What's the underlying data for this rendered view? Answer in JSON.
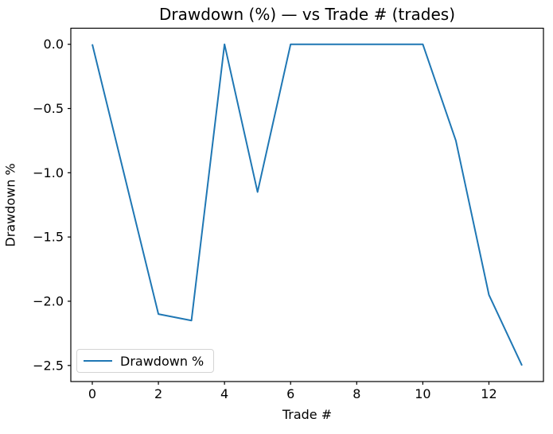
{
  "figure": {
    "background": "#ffffff",
    "text_color": "#000000",
    "spine_color": "#000000"
  },
  "chart_data": {
    "type": "line",
    "title": "Drawdown (%) — vs Trade # (trades)",
    "xlabel": "Trade #",
    "ylabel": "Drawdown %",
    "x": [
      0,
      1,
      2,
      3,
      4,
      5,
      6,
      7,
      8,
      9,
      10,
      11,
      12,
      13
    ],
    "series": [
      {
        "name": "Drawdown %",
        "color": "#1f77b4",
        "values": [
          0.0,
          -1.05,
          -2.1,
          -2.15,
          0.0,
          -1.15,
          0.0,
          0.0,
          0.0,
          0.0,
          0.0,
          -0.75,
          -1.95,
          -2.5
        ]
      }
    ],
    "xlim": [
      -0.65,
      13.65
    ],
    "ylim": [
      -2.625,
      0.125
    ],
    "xticks": {
      "values": [
        0,
        2,
        4,
        6,
        8,
        10,
        12
      ],
      "labels": [
        "0",
        "2",
        "4",
        "6",
        "8",
        "10",
        "12"
      ]
    },
    "yticks": {
      "values": [
        0.0,
        -0.5,
        -1.0,
        -1.5,
        -2.0,
        -2.5
      ],
      "labels": [
        "0.0",
        "−0.5",
        "−1.0",
        "−1.5",
        "−2.0",
        "−2.5"
      ]
    },
    "grid": false,
    "legend": {
      "position": "lower left",
      "entries": [
        "Drawdown %"
      ]
    }
  }
}
